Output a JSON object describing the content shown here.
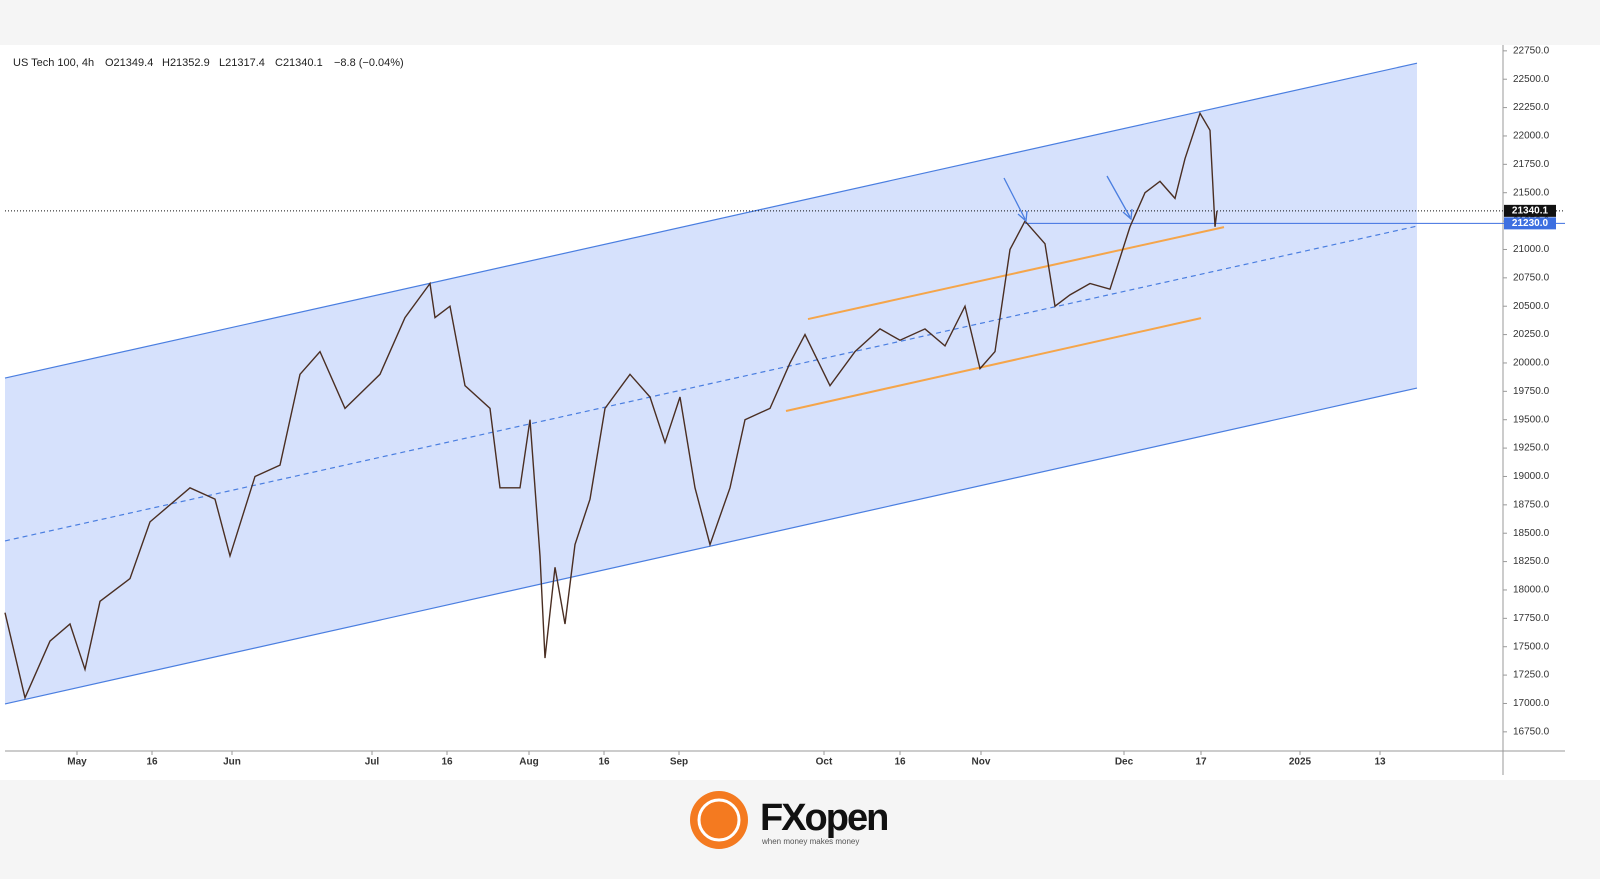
{
  "chart_data": {
    "type": "line",
    "title": "US Tech 100, 4h",
    "ohlc": [
      "O21349.4",
      "H21352.9",
      "L21317.4",
      "C21340.1"
    ],
    "change": "−8.8 (−0.04%)",
    "xlim": [
      0,
      299.6
    ],
    "ylim": [
      16590,
      22775
    ],
    "xticks": [
      {
        "value": 14.4,
        "label": "May"
      },
      {
        "value": 29.4,
        "label": "16"
      },
      {
        "value": 45.4,
        "label": "Jun"
      },
      {
        "value": 73.4,
        "label": "Jul"
      },
      {
        "value": 88.4,
        "label": "16"
      },
      {
        "value": 104.8,
        "label": "Aug"
      },
      {
        "value": 119.8,
        "label": "16"
      },
      {
        "value": 134.8,
        "label": "Sep"
      },
      {
        "value": 163.8,
        "label": "Oct"
      },
      {
        "value": 179,
        "label": "16"
      },
      {
        "value": 195.2,
        "label": "Nov"
      },
      {
        "value": 223.8,
        "label": "Dec"
      },
      {
        "value": 239.2,
        "label": "17"
      },
      {
        "value": 259,
        "label": "2025"
      },
      {
        "value": 275,
        "label": "13"
      }
    ],
    "yticks": [
      {
        "value": 16750,
        "label": "16750.0"
      },
      {
        "value": 17000,
        "label": "17000.0"
      },
      {
        "value": 17250,
        "label": "17250.0"
      },
      {
        "value": 17500,
        "label": "17500.0"
      },
      {
        "value": 17750,
        "label": "17750.0"
      },
      {
        "value": 18000,
        "label": "18000.0"
      },
      {
        "value": 18250,
        "label": "18250.0"
      },
      {
        "value": 18500,
        "label": "18500.0"
      },
      {
        "value": 18750,
        "label": "18750.0"
      },
      {
        "value": 19000,
        "label": "19000.0"
      },
      {
        "value": 19250,
        "label": "19250.0"
      },
      {
        "value": 19500,
        "label": "19500.0"
      },
      {
        "value": 19750,
        "label": "19750.0"
      },
      {
        "value": 20000,
        "label": "20000.0"
      },
      {
        "value": 20250,
        "label": "20250.0"
      },
      {
        "value": 20500,
        "label": "20500.0"
      },
      {
        "value": 20750,
        "label": "20750.0"
      },
      {
        "value": 21000,
        "label": "21000.0"
      },
      {
        "value": 21250,
        "label": "21250.0"
      },
      {
        "value": 21500,
        "label": "21500.0"
      },
      {
        "value": 21750,
        "label": "21750.0"
      },
      {
        "value": 22000,
        "label": "22000.0"
      },
      {
        "value": 22250,
        "label": "22250.0"
      },
      {
        "value": 22500,
        "label": "22500.0"
      },
      {
        "value": 22750,
        "label": "22750.0"
      }
    ],
    "series": [
      {
        "color": "#4a2e22",
        "x": [
          0,
          4,
          9,
          13,
          16,
          19,
          25,
          29,
          37,
          42,
          45,
          50,
          55,
          59,
          63,
          68,
          75,
          80,
          85,
          86,
          89,
          92,
          97,
          99,
          103,
          105,
          107,
          108,
          110,
          112,
          114,
          117,
          120,
          125,
          129,
          132,
          135,
          138,
          141,
          145,
          148,
          153,
          157,
          160,
          165,
          170,
          175,
          179,
          184,
          188,
          192,
          195,
          198,
          201,
          204,
          208,
          210,
          213,
          217,
          221,
          225,
          228,
          231,
          234,
          236,
          239,
          241,
          242,
          242.4
        ],
        "values": [
          17800,
          17050,
          17550,
          17700,
          17300,
          17900,
          18100,
          18600,
          18900,
          18800,
          18300,
          19000,
          19100,
          19900,
          20100,
          19600,
          19900,
          20400,
          20700,
          20400,
          20500,
          19800,
          19600,
          18900,
          18900,
          19500,
          18300,
          17400,
          18200,
          17700,
          18400,
          18800,
          19600,
          19900,
          19700,
          19300,
          19700,
          18900,
          18400,
          18900,
          19500,
          19600,
          20000,
          20250,
          19800,
          20100,
          20300,
          20200,
          20300,
          20150,
          20500,
          19950,
          20100,
          21000,
          21250,
          21050,
          20500,
          20600,
          20700,
          20650,
          21200,
          21500,
          21600,
          21450,
          21800,
          22200,
          22050,
          21200,
          21340
        ]
      }
    ],
    "channel": {
      "color": "#4a7ee0",
      "fill": "#cfdcfb",
      "upper": {
        "x": [
          0,
          282.4
        ],
        "y": [
          19867,
          22641
        ]
      },
      "lower": {
        "x": [
          0,
          282.4
        ],
        "y": [
          16996,
          19779
        ]
      },
      "middle": {
        "x": [
          0,
          282.4
        ],
        "y": [
          18432,
          21206
        ]
      }
    },
    "inner_channel": {
      "color": "#f5a54a",
      "upper": {
        "x": [
          160.6,
          243.8
        ],
        "y": [
          20387,
          21197
        ]
      },
      "lower": {
        "x": [
          156.2,
          239.2
        ],
        "y": [
          19577,
          20395
        ]
      }
    },
    "levels": [
      {
        "value": 21340.1,
        "label": "21340.1",
        "color": "#111111",
        "from": 0
      },
      {
        "value": 21230,
        "label": "21230.0",
        "color": "#3d6fe0",
        "from": 204
      }
    ],
    "logo": {
      "name": "FXopen",
      "tagline": "when money makes money"
    }
  }
}
